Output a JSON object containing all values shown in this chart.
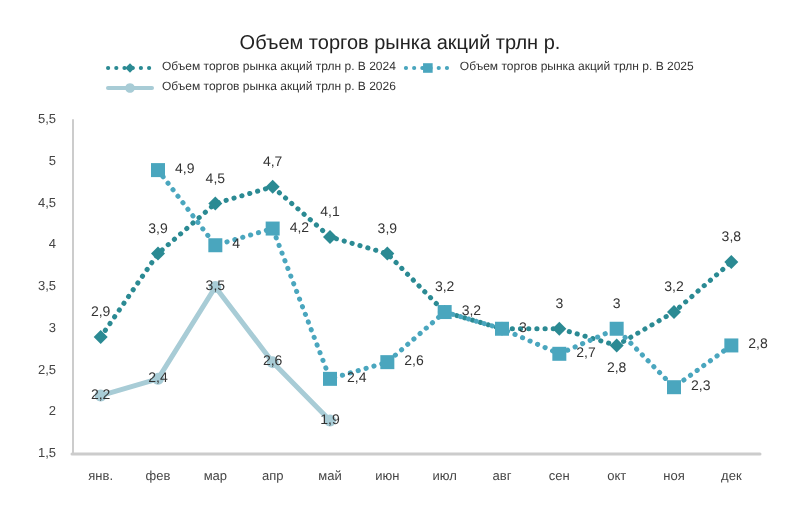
{
  "chart_data": {
    "type": "line",
    "title": "Объем торгов рынка акций трлн р.",
    "categories": [
      "янв.",
      "фев",
      "мар",
      "апр",
      "май",
      "июн",
      "июл",
      "авг",
      "сен",
      "окт",
      "ноя",
      "дек"
    ],
    "series": [
      {
        "name": "Объем торгов рынка акций трлн р. В 2024",
        "color": "#2b8a93",
        "marker": "diamond",
        "line_style": "dotted",
        "values": [
          2.9,
          3.9,
          4.5,
          4.7,
          4.1,
          3.9,
          3.2,
          3,
          3,
          2.8,
          3.2,
          3.8
        ],
        "value_labels": [
          "2,9",
          "3,9",
          "4,5",
          "4,7",
          "4,1",
          "3,9",
          "3,2",
          null,
          "3",
          "2,8",
          "3,2",
          "3,8"
        ]
      },
      {
        "name": "Объем торгов рынка акций трлн р. В 2025",
        "color": "#4aa6be",
        "marker": "square",
        "line_style": "dotted",
        "values": [
          null,
          4.9,
          4,
          4.2,
          2.4,
          2.6,
          3.2,
          3,
          2.7,
          3,
          2.3,
          2.8
        ],
        "value_labels": [
          null,
          "4,9",
          "4",
          "4,2",
          "2,4",
          "2,6",
          "3,2",
          "3",
          "2,7",
          "3",
          "2,3",
          "2,8"
        ]
      },
      {
        "name": "Объем торгов рынка акций трлн р. В 2026",
        "color": "#a8ccd6",
        "marker": "circle",
        "line_style": "solid",
        "values": [
          2.2,
          2.4,
          3.5,
          2.6,
          1.9,
          null,
          null,
          null,
          null,
          null,
          null,
          null
        ],
        "value_labels": [
          "2,2",
          "2,4",
          "3,5",
          "2,6",
          "1,9",
          null,
          null,
          null,
          null,
          null,
          null,
          null
        ]
      }
    ],
    "ylim": [
      1.5,
      5.5
    ],
    "yticks": [
      {
        "value": 1.5,
        "label": "1,5"
      },
      {
        "value": 2,
        "label": "2"
      },
      {
        "value": 2.5,
        "label": "2,5"
      },
      {
        "value": 3,
        "label": "3"
      },
      {
        "value": 3.5,
        "label": "3,5"
      },
      {
        "value": 4,
        "label": "4"
      },
      {
        "value": 4.5,
        "label": "4,5"
      },
      {
        "value": 5,
        "label": "5"
      },
      {
        "value": 5.5,
        "label": "5,5"
      }
    ],
    "grid": false,
    "legend": "top"
  }
}
